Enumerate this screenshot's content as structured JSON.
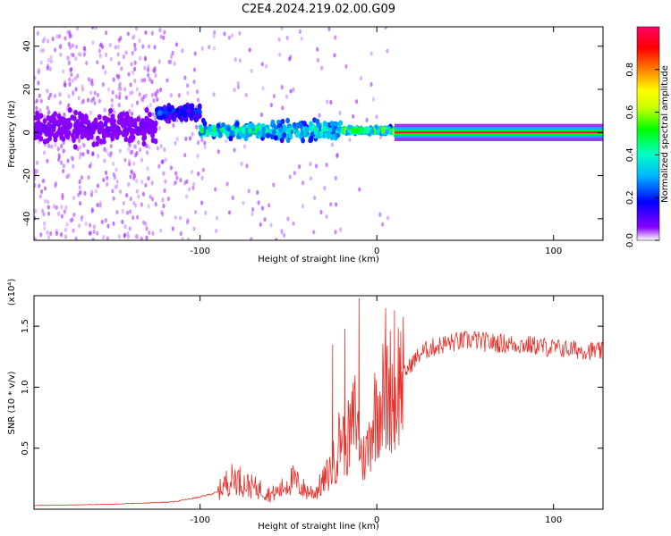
{
  "figure": {
    "title": "C2E4.2024.219.02.00.G09"
  },
  "chart_data": [
    {
      "type": "heatmap",
      "xlabel": "Height of straight line (km)",
      "ylabel": "Frequency (Hz)",
      "xlim": [
        -194,
        128
      ],
      "ylim": [
        -50,
        49
      ],
      "xticks": [
        -100,
        0,
        100
      ],
      "yticks": [
        -40,
        -20,
        0,
        20,
        40
      ],
      "colorbar": {
        "label": "Normalized spectral amplitude",
        "range": [
          0,
          1
        ],
        "ticks": [
          "0.0",
          "0.2",
          "0.4",
          "0.6",
          "0.8"
        ],
        "tick_values": [
          0.0,
          0.2,
          0.4,
          0.6,
          0.8
        ],
        "colors": [
          "#ffffff",
          "#8a00ff",
          "#0000ff",
          "#00b4ff",
          "#00ffc8",
          "#00ff00",
          "#c8ff00",
          "#ffff00",
          "#ff8000",
          "#ff0000",
          "#ff0066"
        ]
      },
      "segments": [
        {
          "x0": -194,
          "x1": -125,
          "freq": 2,
          "spread": 10,
          "amp": 0.12,
          "scatter": "high"
        },
        {
          "x0": -125,
          "x1": -100,
          "freq": 9,
          "spread": 5,
          "amp": 0.25,
          "scatter": "medium"
        },
        {
          "x0": -100,
          "x1": -60,
          "freq": 1,
          "spread": 5,
          "amp": 0.45,
          "scatter": "low"
        },
        {
          "x0": -60,
          "x1": -20,
          "freq": 1,
          "spread": 6,
          "amp": 0.42,
          "scatter": "low"
        },
        {
          "x0": -20,
          "x1": 10,
          "freq": 1,
          "spread": 2,
          "amp": 0.55,
          "scatter": "very_low"
        },
        {
          "x0": 10,
          "x1": 128,
          "freq": 0,
          "spread": 2,
          "amp": 0.95,
          "scatter": "none"
        }
      ]
    },
    {
      "type": "line",
      "xlabel": "Height of straight line (km)",
      "ylabel": "SNR (10 * v/v)",
      "y_multiplier": "(x10⁴)",
      "xlim": [
        -194,
        128
      ],
      "ylim": [
        0,
        17500
      ],
      "xticks": [
        -100,
        0,
        100
      ],
      "yticks": [
        5000,
        10000,
        15000
      ],
      "ytick_labels": [
        "0.5",
        "1.0",
        "1.5"
      ],
      "color": "#e8302a",
      "series": [
        {
          "x": [
            -194,
            -150,
            -115,
            -100,
            -90,
            -85,
            -80,
            -75,
            -70,
            -65,
            -60,
            -55,
            -50,
            -47,
            -45,
            -40,
            -35,
            -30,
            -25,
            -22,
            -20,
            -18,
            -15,
            -12,
            -10,
            -8,
            -5,
            -3,
            0,
            2,
            5,
            8,
            10,
            12,
            15,
            20,
            25,
            30,
            40,
            50,
            55,
            60,
            70,
            80,
            90,
            100,
            110,
            120,
            128
          ],
          "y": [
            300,
            400,
            600,
            1000,
            1400,
            2200,
            2600,
            2100,
            1800,
            1600,
            1200,
            1500,
            2200,
            2400,
            2100,
            1500,
            1400,
            2300,
            3500,
            5000,
            6500,
            5500,
            6000,
            8000,
            5500,
            4000,
            5000,
            7000,
            8500,
            9000,
            9500,
            10000,
            9000,
            10500,
            11000,
            12000,
            12800,
            13200,
            13600,
            13800,
            13900,
            13700,
            13600,
            13500,
            13400,
            13200,
            13100,
            13000,
            12900
          ]
        }
      ],
      "spikes": [
        {
          "x": -10,
          "y": 17300
        },
        {
          "x": -18,
          "y": 14800
        },
        {
          "x": -25,
          "y": 13500
        },
        {
          "x": 5,
          "y": 16500
        },
        {
          "x": 10,
          "y": 16300
        }
      ]
    }
  ]
}
